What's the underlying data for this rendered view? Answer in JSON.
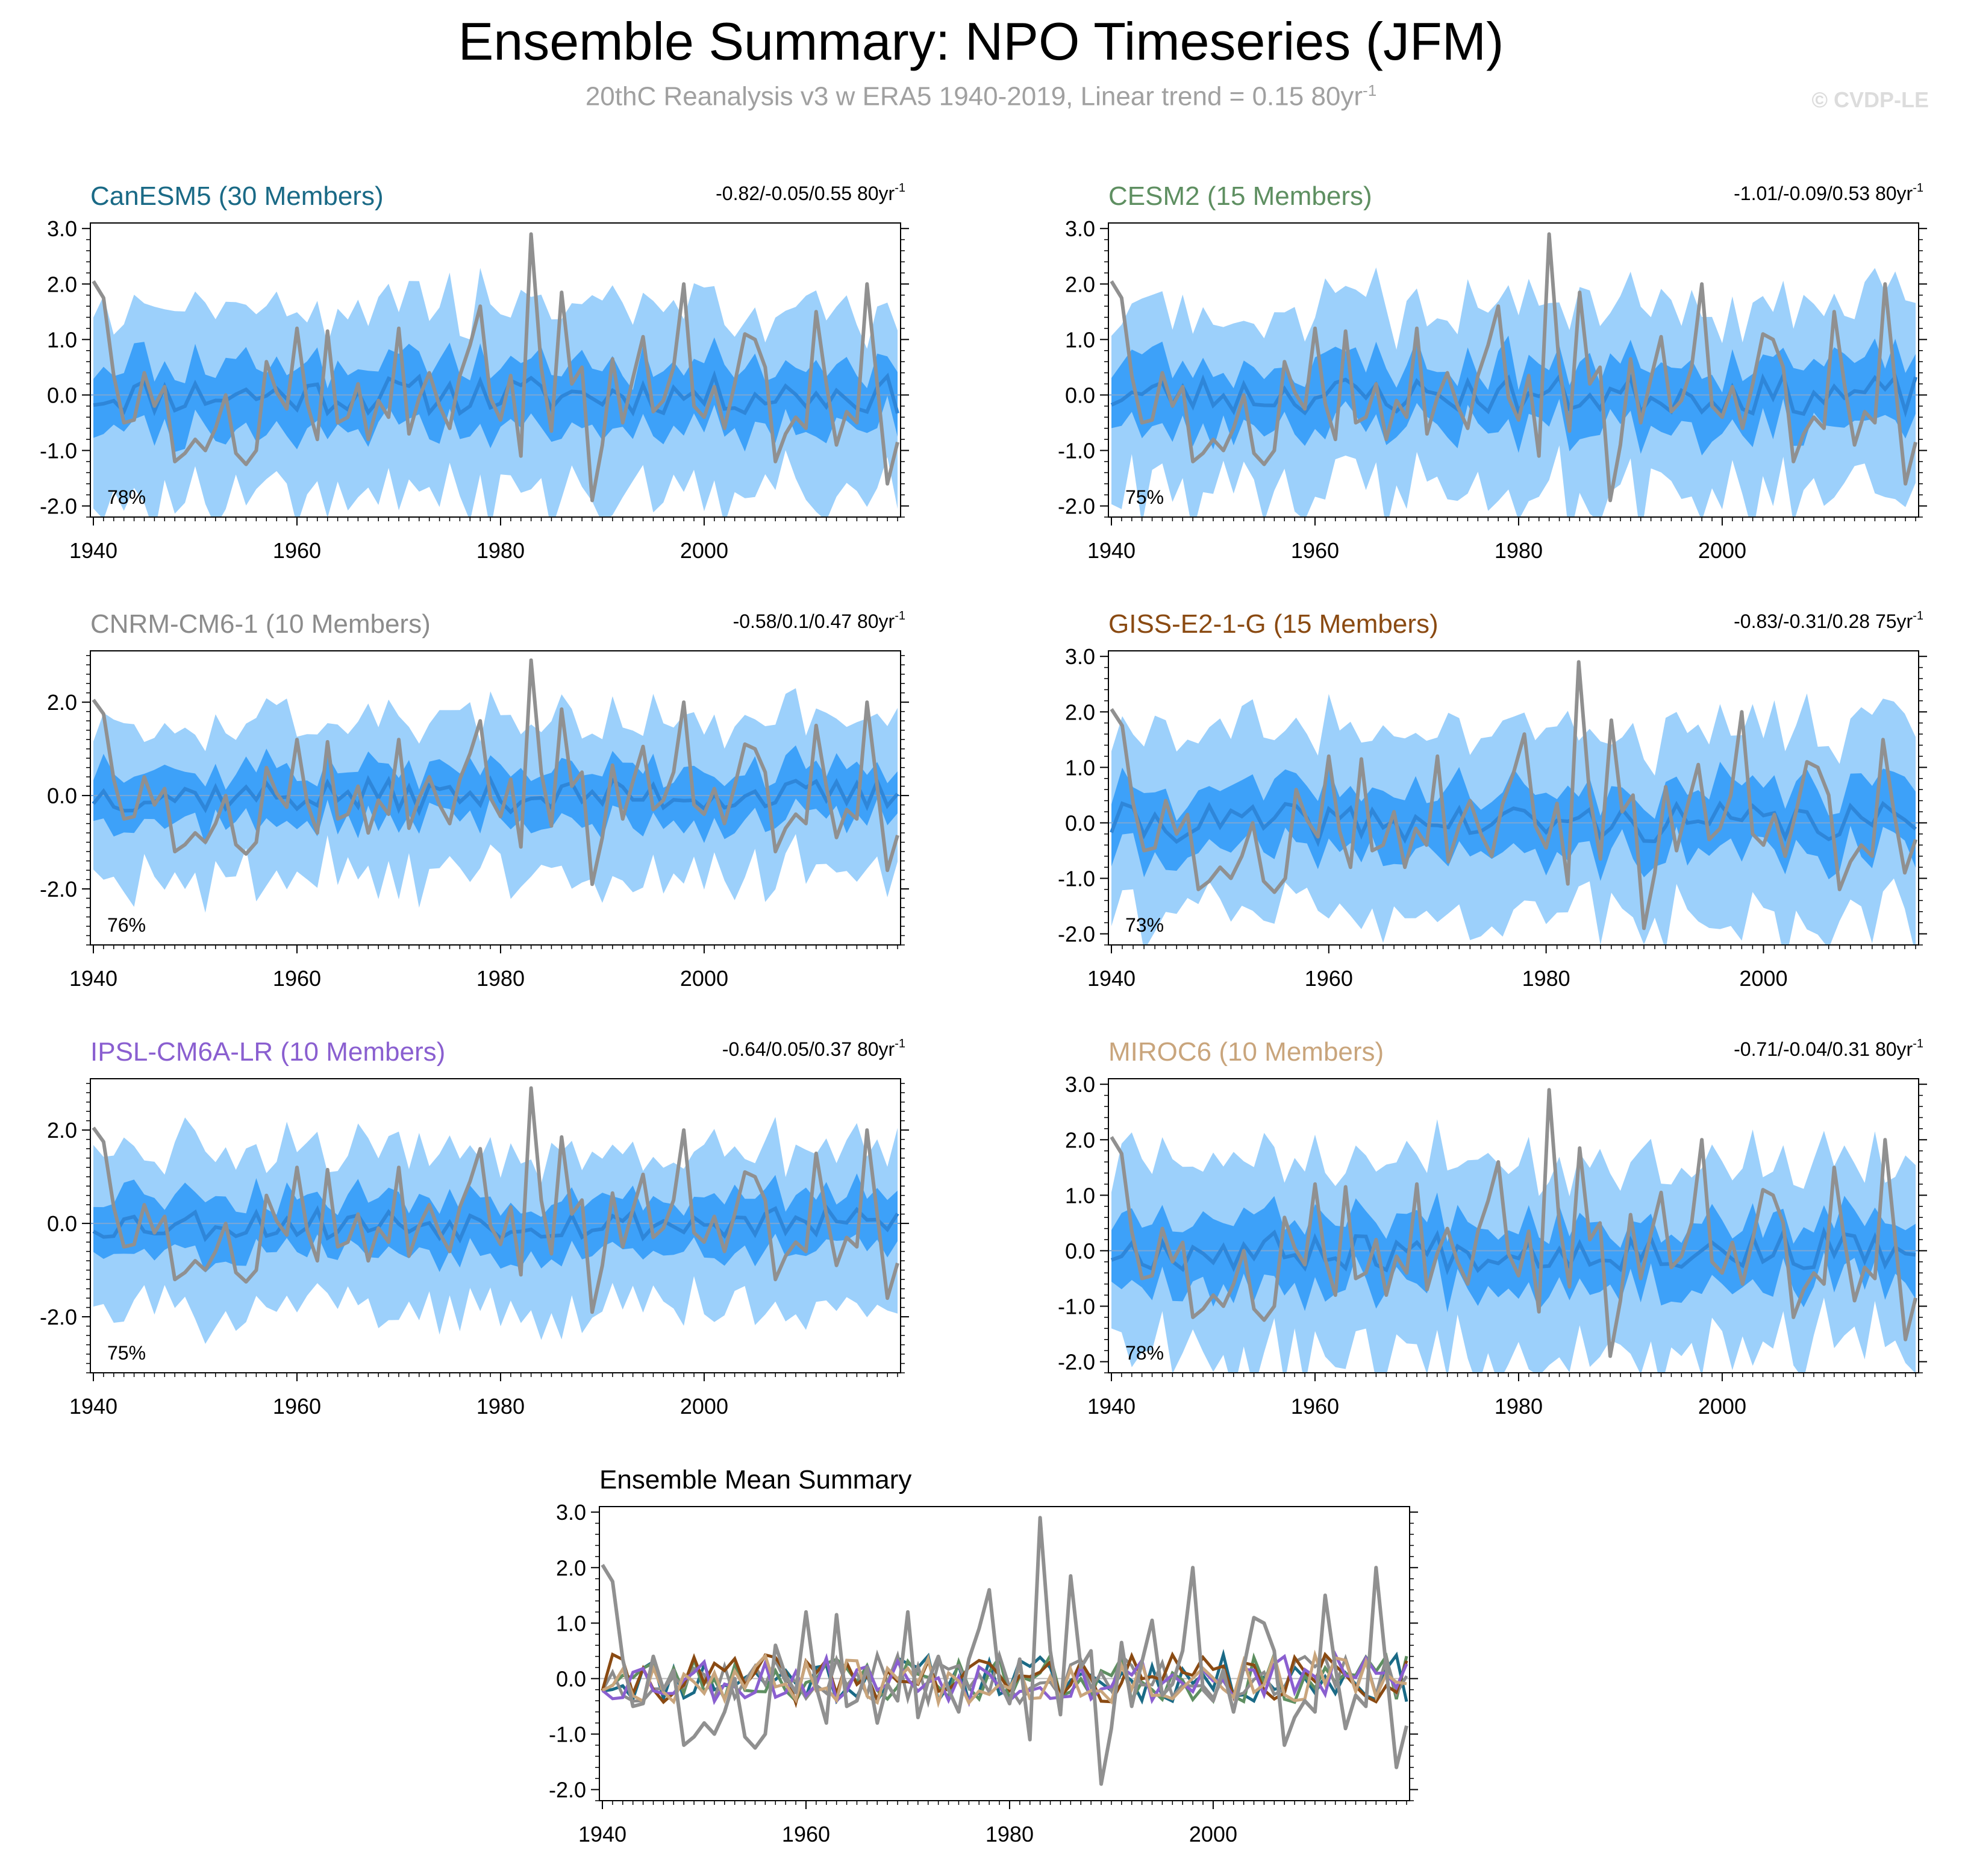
{
  "title": "Ensemble Summary: NPO Timeseries (JFM)",
  "subtitle": "20thC Reanalysis v3 w ERA5 1940-2019, Linear trend = 0.15 80yr",
  "subtitle_sup": "-1",
  "watermark": "© CVDP-LE",
  "colors": {
    "obs": "#909090",
    "band_outer": "#9cd0fb",
    "band_inner": "#3da1f9",
    "ens_mean": "#2e86d9"
  },
  "chart_data": [
    {
      "type": "line",
      "title": "CanESM5 (30 Members)",
      "title_color": "#1a6a86",
      "trend_text": "-0.82/-0.05/0.55 80yr",
      "trend_sup": "-1",
      "percent": "78%",
      "ylim": [
        -2.2,
        3.1
      ],
      "yticks": [
        "3.0",
        "2.0",
        "1.0",
        "0.0",
        "-1.0",
        "-2.0"
      ],
      "xticks": [
        "1940",
        "1960",
        "1980",
        "2000"
      ],
      "xlim": [
        1940,
        2019
      ],
      "seed": 11
    },
    {
      "type": "line",
      "title": "CESM2 (15 Members)",
      "title_color": "#5e8f61",
      "trend_text": "-1.01/-0.09/0.53 80yr",
      "trend_sup": "-1",
      "percent": "75%",
      "ylim": [
        -2.2,
        3.1
      ],
      "yticks": [
        "3.0",
        "2.0",
        "1.0",
        "0.0",
        "-1.0",
        "-2.0"
      ],
      "xticks": [
        "1940",
        "1960",
        "1980",
        "2000"
      ],
      "xlim": [
        1940,
        2019
      ],
      "seed": 23
    },
    {
      "type": "line",
      "title": "CNRM-CM6-1 (10 Members)",
      "title_color": "#8c8c8c",
      "trend_text": "-0.58/0.1/0.47 80yr",
      "trend_sup": "-1",
      "percent": "76%",
      "ylim": [
        -3.2,
        3.1
      ],
      "yticks": [
        "2.0",
        "0.0",
        "-2.0"
      ],
      "xticks": [
        "1940",
        "1960",
        "1980",
        "2000"
      ],
      "xlim": [
        1940,
        2019
      ],
      "seed": 37
    },
    {
      "type": "line",
      "title": "GISS-E2-1-G (15 Members)",
      "title_color": "#8a4a12",
      "trend_text": "-0.83/-0.31/0.28 75yr",
      "trend_sup": "-1",
      "percent": "73%",
      "ylim": [
        -2.2,
        3.1
      ],
      "yticks": [
        "3.0",
        "2.0",
        "1.0",
        "0.0",
        "-1.0",
        "-2.0"
      ],
      "xticks": [
        "1940",
        "1960",
        "1980",
        "2000"
      ],
      "xlim": [
        1940,
        2014
      ],
      "seed": 41
    },
    {
      "type": "line",
      "title": "IPSL-CM6A-LR (10 Members)",
      "title_color": "#8a5fd0",
      "trend_text": "-0.64/0.05/0.37 80yr",
      "trend_sup": "-1",
      "percent": "75%",
      "ylim": [
        -3.2,
        3.1
      ],
      "yticks": [
        "2.0",
        "0.0",
        "-2.0"
      ],
      "xticks": [
        "1940",
        "1960",
        "1980",
        "2000"
      ],
      "xlim": [
        1940,
        2019
      ],
      "seed": 53
    },
    {
      "type": "line",
      "title": "MIROC6 (10 Members)",
      "title_color": "#c9a57c",
      "trend_text": "-0.71/-0.04/0.31 80yr",
      "trend_sup": "-1",
      "percent": "78%",
      "ylim": [
        -2.2,
        3.1
      ],
      "yticks": [
        "3.0",
        "2.0",
        "1.0",
        "0.0",
        "-1.0",
        "-2.0"
      ],
      "xticks": [
        "1940",
        "1960",
        "1980",
        "2000"
      ],
      "xlim": [
        1940,
        2019
      ],
      "seed": 67
    },
    {
      "type": "line",
      "title": "Ensemble Mean Summary",
      "title_color": "#000000",
      "ylim": [
        -2.2,
        3.1
      ],
      "yticks": [
        "3.0",
        "2.0",
        "1.0",
        "0.0",
        "-1.0",
        "-2.0"
      ],
      "xticks": [
        "1940",
        "1960",
        "1980",
        "2000"
      ],
      "xlim": [
        1940,
        2019
      ],
      "series": [
        {
          "name": "CanESM5",
          "color": "#1a6a86",
          "seed": 11
        },
        {
          "name": "CESM2",
          "color": "#5e8f61",
          "seed": 23
        },
        {
          "name": "CNRM-CM6-1",
          "color": "#8c8c8c",
          "seed": 37
        },
        {
          "name": "GISS-E2-1-G",
          "color": "#8a4a12",
          "seed": 41
        },
        {
          "name": "IPSL-CM6A-LR",
          "color": "#8a5fd0",
          "seed": 53
        },
        {
          "name": "MIROC6",
          "color": "#c9a57c",
          "seed": 67
        }
      ]
    }
  ],
  "obs_series": {
    "name": "20thC Reanalysis v3 w ERA5",
    "x_start": 1940,
    "values": [
      2.05,
      1.75,
      0.35,
      -0.5,
      -0.45,
      0.4,
      -0.2,
      0.15,
      -1.2,
      -1.05,
      -0.8,
      -1.0,
      -0.6,
      0.0,
      -1.05,
      -1.25,
      -1.0,
      0.6,
      0.05,
      -0.25,
      1.2,
      -0.15,
      -0.8,
      1.15,
      -0.5,
      -0.4,
      0.2,
      -0.8,
      -0.1,
      -0.4,
      1.2,
      -0.7,
      -0.05,
      0.4,
      -0.2,
      -0.6,
      0.35,
      0.9,
      1.6,
      -0.05,
      -0.45,
      0.35,
      -1.1,
      2.9,
      0.5,
      -0.65,
      1.85,
      0.2,
      0.5,
      -1.9,
      -0.9,
      0.65,
      -0.5,
      0.3,
      1.05,
      -0.3,
      -0.1,
      0.5,
      2.0,
      -0.2,
      -0.4,
      0.15,
      -0.6,
      0.2,
      1.1,
      1.0,
      0.5,
      -1.2,
      -0.7,
      -0.4,
      -0.6,
      1.5,
      0.2,
      -0.9,
      -0.3,
      -0.5,
      2.0,
      0.2,
      -1.6,
      -0.85
    ]
  }
}
